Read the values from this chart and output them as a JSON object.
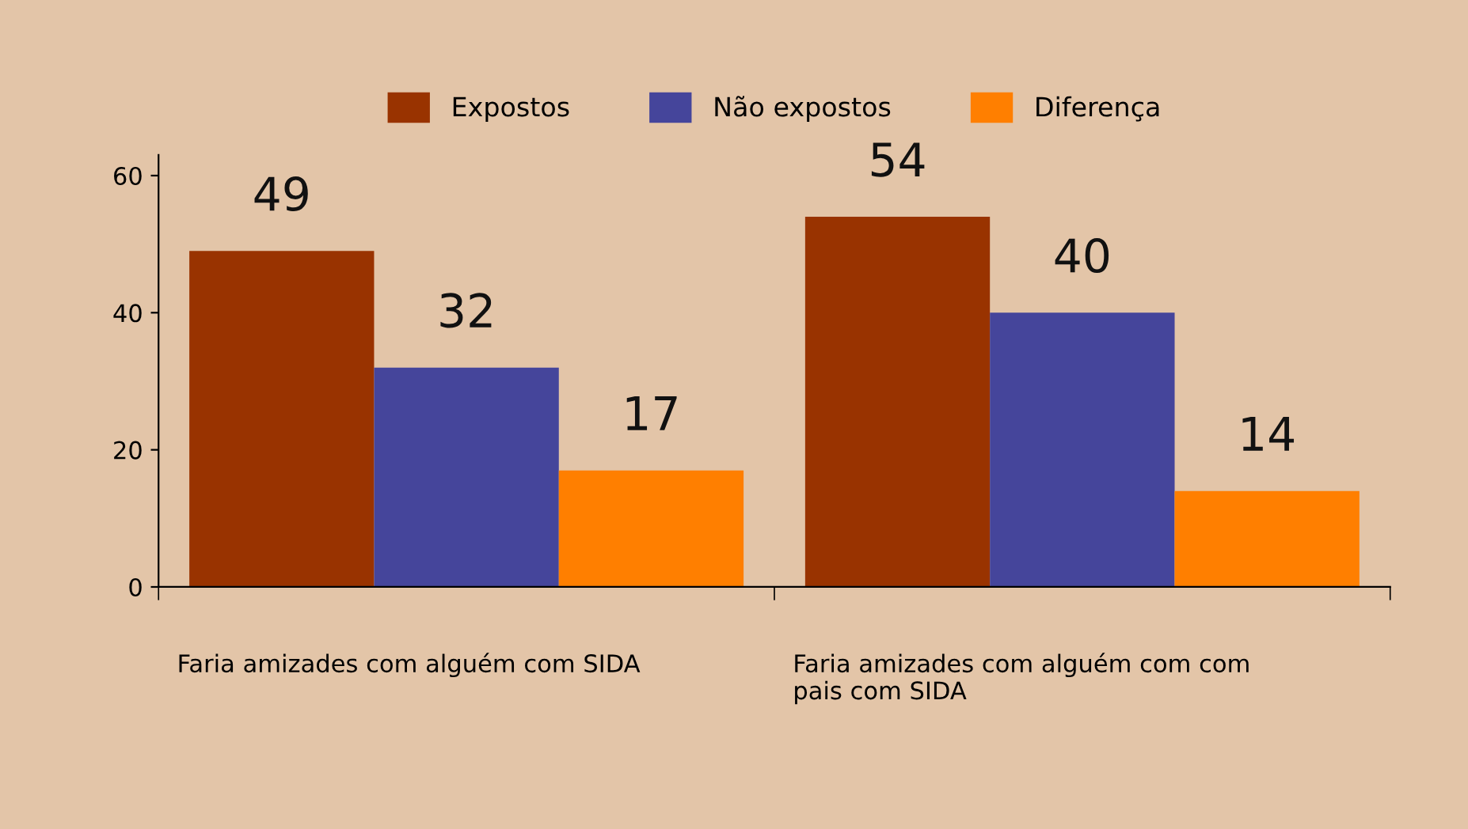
{
  "chart_data": {
    "type": "bar",
    "categories": [
      "Faria amizades com alguém com SIDA",
      "Faria amizades com alguém com com\npais com SIDA"
    ],
    "series": [
      {
        "name": "Expostos",
        "color": "#993300",
        "values": [
          49,
          54
        ]
      },
      {
        "name": "Não expostos",
        "color": "#45459b",
        "values": [
          32,
          40
        ]
      },
      {
        "name": "Diferença",
        "color": "#ff7f00",
        "values": [
          17,
          14
        ]
      }
    ],
    "ylim": [
      0,
      63
    ],
    "yticks": [
      0,
      20,
      40,
      60
    ],
    "grid": false,
    "legend": "top",
    "data_labels": true
  }
}
